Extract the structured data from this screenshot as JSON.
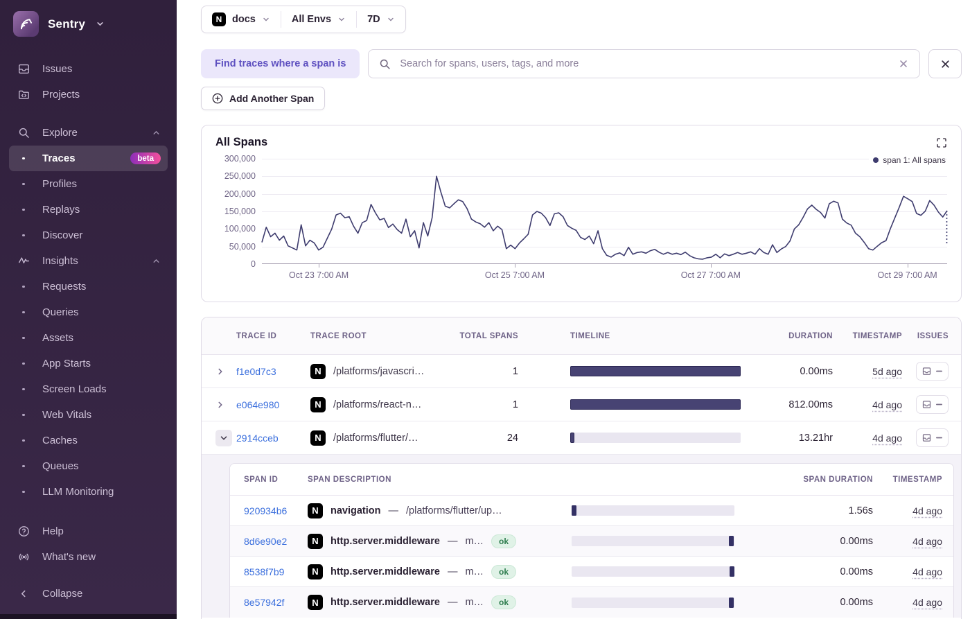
{
  "logos": {
    "nextjs_letter": "N"
  },
  "sidebar": {
    "brand_label": "Sentry",
    "nav": [
      {
        "label": "Issues",
        "icon": "issues",
        "kind": "top"
      },
      {
        "label": "Projects",
        "icon": "projects",
        "kind": "top"
      },
      {
        "label": "Explore",
        "icon": "search",
        "kind": "section",
        "gap_top": true
      },
      {
        "label": "Traces",
        "kind": "sub",
        "active": true,
        "badge": "beta"
      },
      {
        "label": "Profiles",
        "kind": "sub"
      },
      {
        "label": "Replays",
        "kind": "sub"
      },
      {
        "label": "Discover",
        "kind": "sub"
      },
      {
        "label": "Insights",
        "icon": "pulse",
        "kind": "section"
      },
      {
        "label": "Requests",
        "kind": "sub"
      },
      {
        "label": "Queries",
        "kind": "sub"
      },
      {
        "label": "Assets",
        "kind": "sub"
      },
      {
        "label": "App Starts",
        "kind": "sub"
      },
      {
        "label": "Screen Loads",
        "kind": "sub"
      },
      {
        "label": "Web Vitals",
        "kind": "sub"
      },
      {
        "label": "Caches",
        "kind": "sub"
      },
      {
        "label": "Queues",
        "kind": "sub"
      },
      {
        "label": "LLM Monitoring",
        "kind": "sub"
      }
    ],
    "footer": [
      {
        "label": "Help",
        "icon": "help"
      },
      {
        "label": "What's new",
        "icon": "broadcast"
      }
    ],
    "collapse_label": "Collapse"
  },
  "filters": {
    "project_label": "docs",
    "environment_label": "All Envs",
    "period_label": "7D"
  },
  "search": {
    "prefix_label": "Find traces where a span is",
    "placeholder": "Search for spans, users, tags, and more"
  },
  "actions": {
    "add_span_label": "Add Another Span"
  },
  "chart_data": {
    "type": "line",
    "title": "All Spans",
    "legend": [
      "span 1: All spans"
    ],
    "legend_position": "top-right",
    "series_color": "#3e3c6e",
    "grid": true,
    "ylim": [
      0,
      300000
    ],
    "y_tick_labels": [
      "300,000",
      "250,000",
      "200,000",
      "150,000",
      "100,000",
      "50,000",
      "0"
    ],
    "x_tick_labels": [
      "Oct 23 7:00 AM",
      "Oct 25 7:00 AM",
      "Oct 27 7:00 AM",
      "Oct 29 7:00 AM"
    ],
    "x_tick_positions_pct": [
      8.3,
      36.9,
      65.5,
      94.2
    ],
    "incomplete_end_dashed": true,
    "series": [
      {
        "name": "span 1: All spans",
        "values": [
          62000,
          105000,
          78000,
          88000,
          68000,
          80000,
          52000,
          46000,
          40000,
          112000,
          52000,
          68000,
          60000,
          40000,
          48000,
          74000,
          100000,
          140000,
          145000,
          132000,
          135000,
          108000,
          88000,
          118000,
          124000,
          170000,
          146000,
          126000,
          130000,
          104000,
          114000,
          98000,
          88000,
          128000,
          78000,
          95000,
          46000,
          118000,
          80000,
          132000,
          250000,
          205000,
          165000,
          160000,
          172000,
          183000,
          178000,
          158000,
          128000,
          120000,
          115000,
          105000,
          118000,
          95000,
          108000,
          98000,
          44000,
          54000,
          44000,
          60000,
          72000,
          85000,
          140000,
          150000,
          145000,
          132000,
          110000,
          143000,
          146000,
          135000,
          110000,
          102000,
          96000,
          76000,
          70000,
          80000,
          58000,
          95000,
          44000,
          25000,
          20000,
          28000,
          32000,
          24000,
          48000,
          28000,
          33000,
          35000,
          31000,
          38000,
          42000,
          34000,
          28000,
          33000,
          28000,
          31000,
          27000,
          34000,
          24000,
          18000,
          15000,
          14000,
          18000,
          20000,
          28000,
          18000,
          29000,
          24000,
          28000,
          33000,
          28000,
          31000,
          35000,
          28000,
          44000,
          33000,
          28000,
          55000,
          33000,
          43000,
          50000,
          66000,
          100000,
          112000,
          133000,
          157000,
          168000,
          156000,
          147000,
          131000,
          172000,
          179000,
          174000,
          128000,
          117000,
          111000,
          88000,
          78000,
          62000,
          44000,
          40000,
          51000,
          61000,
          67000,
          101000,
          131000,
          161000,
          193000,
          186000,
          178000,
          144000,
          139000,
          151000,
          181000,
          168000,
          148000,
          134000,
          152000
        ]
      }
    ]
  },
  "table": {
    "columns": [
      "TRACE ID",
      "TRACE ROOT",
      "TOTAL SPANS",
      "TIMELINE",
      "DURATION",
      "TIMESTAMP",
      "ISSUES"
    ],
    "rows": [
      {
        "id": "f1e0d7c3",
        "root": "/platforms/javascri…",
        "total_spans": "1",
        "duration": "0.00ms",
        "timestamp": "5d ago",
        "timeline": {
          "left_pct": 0,
          "width_pct": 100
        },
        "expanded": false
      },
      {
        "id": "e064e980",
        "root": "/platforms/react-n…",
        "total_spans": "1",
        "duration": "812.00ms",
        "timestamp": "4d ago",
        "timeline": {
          "left_pct": 0,
          "width_pct": 100
        },
        "expanded": false
      },
      {
        "id": "2914cceb",
        "root": "/platforms/flutter/…",
        "total_spans": "24",
        "duration": "13.21hr",
        "timestamp": "4d ago",
        "timeline": {
          "left_pct": 0,
          "width_pct": 2.5
        },
        "expanded": true
      }
    ],
    "span_columns": [
      "SPAN ID",
      "SPAN DESCRIPTION",
      "SPAN DURATION",
      "TIMESTAMP"
    ],
    "span_rows": [
      {
        "id": "920934b6",
        "op": "navigation",
        "desc": "/platforms/flutter/up…",
        "status": "",
        "duration": "1.56s",
        "timestamp": "4d ago",
        "marker_pos_pct": 0
      },
      {
        "id": "8d6e90e2",
        "op": "http.server.middleware",
        "desc": "m…",
        "status": "ok",
        "duration": "0.00ms",
        "timestamp": "4d ago",
        "marker_pos_pct": 96.5
      },
      {
        "id": "8538f7b9",
        "op": "http.server.middleware",
        "desc": "m…",
        "status": "ok",
        "duration": "0.00ms",
        "timestamp": "4d ago",
        "marker_pos_pct": 98.8
      },
      {
        "id": "8e57942f",
        "op": "http.server.middleware",
        "desc": "m…",
        "status": "ok",
        "duration": "0.00ms",
        "timestamp": "4d ago",
        "marker_pos_pct": 96.5
      }
    ]
  }
}
